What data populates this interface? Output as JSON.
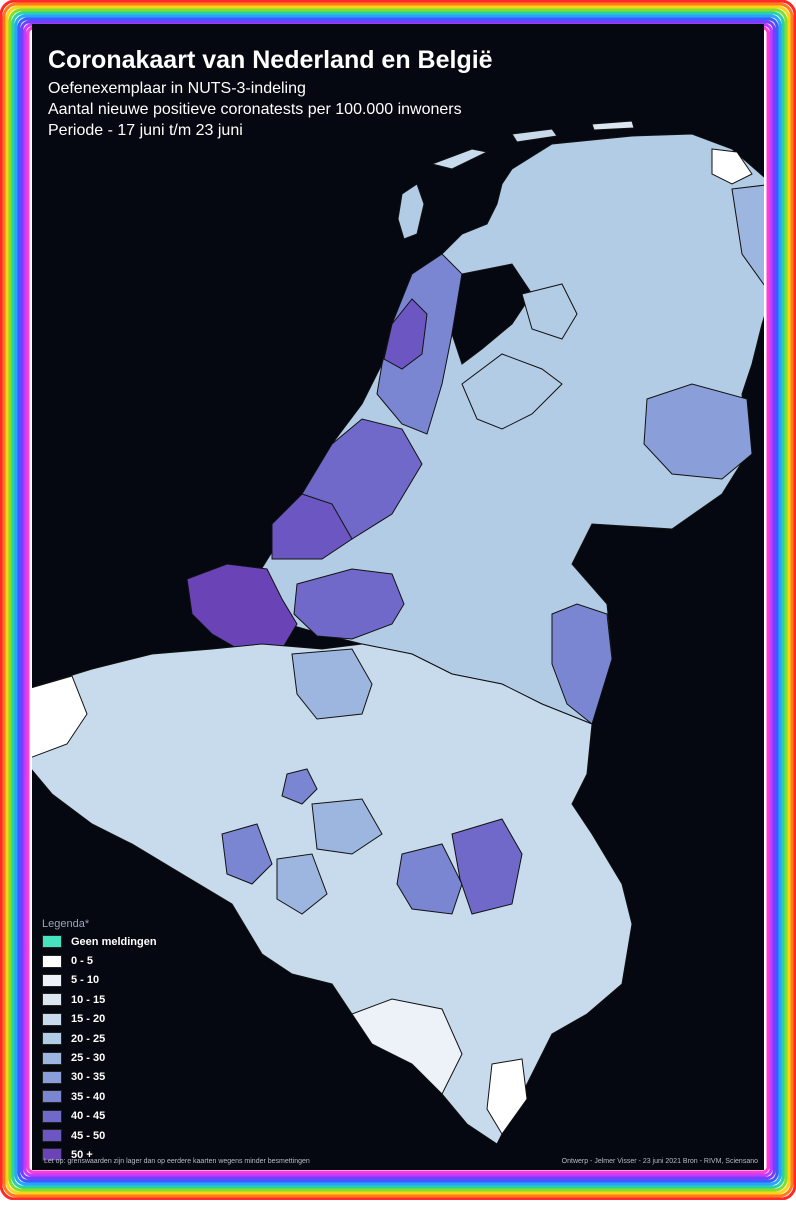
{
  "title": "Coronakaart van Nederland en België",
  "subtitles": [
    "Oefenexemplaar in NUTS-3-indeling",
    "Aantal nieuwe positieve coronatests per 100.000 inwoners",
    "Periode - 17 juni t/m 23 juni"
  ],
  "legend": {
    "title": "Legenda*",
    "items": [
      {
        "label": "Geen meldingen",
        "color": "#46e3c0"
      },
      {
        "label": "0 - 5",
        "color": "#ffffff"
      },
      {
        "label": "5 - 10",
        "color": "#edf2f8"
      },
      {
        "label": "10 - 15",
        "color": "#dbe6f1"
      },
      {
        "label": "15 - 20",
        "color": "#c8dbec"
      },
      {
        "label": "20 - 25",
        "color": "#b3cce6"
      },
      {
        "label": "25 - 30",
        "color": "#9db6e0"
      },
      {
        "label": "30 - 35",
        "color": "#8a9fd9"
      },
      {
        "label": "35 - 40",
        "color": "#7b86d2"
      },
      {
        "label": "40 - 45",
        "color": "#7069ca"
      },
      {
        "label": "45 - 50",
        "color": "#6c57c2"
      },
      {
        "label": "50 +",
        "color": "#6a44b7"
      }
    ]
  },
  "footnote_left": "Let op: grenswaarden zijn lager dan op eerdere kaarten wegens minder besmettingen",
  "footnote_right": "Ontwerp - Jelmer Visser - 23 juni 2021 Bron - RIVM, Sciensano",
  "map": {
    "regions": [
      {
        "name": "oost-groningen",
        "class": "0 - 5"
      },
      {
        "name": "delfzijl",
        "class": "10 - 15"
      },
      {
        "name": "overig-groningen",
        "class": "10 - 15"
      },
      {
        "name": "noord-friesland",
        "class": "15 - 20"
      },
      {
        "name": "zuidwest-friesland",
        "class": "15 - 20"
      },
      {
        "name": "zuidoost-friesland",
        "class": "15 - 20"
      },
      {
        "name": "noord-drenthe",
        "class": "15 - 20"
      },
      {
        "name": "zuidoost-drenthe",
        "class": "10 - 15"
      },
      {
        "name": "zuidwest-drenthe",
        "class": "20 - 25"
      },
      {
        "name": "noord-overijssel",
        "class": "25 - 30"
      },
      {
        "name": "zuidwest-overijssel",
        "class": "20 - 25"
      },
      {
        "name": "twente",
        "class": "30 - 35"
      },
      {
        "name": "flevoland",
        "class": "20 - 25"
      },
      {
        "name": "veluwe",
        "class": "25 - 30"
      },
      {
        "name": "achterhoek",
        "class": "20 - 25"
      },
      {
        "name": "arnhem-nijmegen",
        "class": "25 - 30"
      },
      {
        "name": "zuidwest-gelderland",
        "class": "25 - 30"
      },
      {
        "name": "utrecht",
        "class": "30 - 35"
      },
      {
        "name": "kop-van-noord-holland",
        "class": "20 - 25"
      },
      {
        "name": "alkmaar",
        "class": "45 - 50"
      },
      {
        "name": "ijmond",
        "class": "40 - 45"
      },
      {
        "name": "haarlem",
        "class": "40 - 45"
      },
      {
        "name": "zaanstreek",
        "class": "35 - 40"
      },
      {
        "name": "groot-amsterdam",
        "class": "35 - 40"
      },
      {
        "name": "het-gooi",
        "class": "30 - 35"
      },
      {
        "name": "agglomeratie-leiden",
        "class": "40 - 45"
      },
      {
        "name": "agglomeratie-s-gravenhage",
        "class": "45 - 50"
      },
      {
        "name": "delft-westland",
        "class": "45 - 50"
      },
      {
        "name": "oost-zuid-holland",
        "class": "35 - 40"
      },
      {
        "name": "groot-rijnmond",
        "class": "45 - 50"
      },
      {
        "name": "zuidoost-zuid-holland",
        "class": "35 - 40"
      },
      {
        "name": "zeeuwsch-vlaanderen",
        "class": "45 - 50"
      },
      {
        "name": "overig-zeeland",
        "class": "50 +"
      },
      {
        "name": "west-noord-brabant",
        "class": "40 - 45"
      },
      {
        "name": "midden-noord-brabant",
        "class": "20 - 25"
      },
      {
        "name": "noordoost-noord-brabant",
        "class": "25 - 30"
      },
      {
        "name": "zuidoost-noord-brabant",
        "class": "25 - 30"
      },
      {
        "name": "noord-limburg",
        "class": "35 - 40"
      },
      {
        "name": "midden-limburg",
        "class": "15 - 20"
      },
      {
        "name": "zuid-limburg",
        "class": "15 - 20"
      },
      {
        "name": "antwerpen",
        "class": "25 - 30"
      },
      {
        "name": "turnhout",
        "class": "20 - 25"
      },
      {
        "name": "mechelen",
        "class": "20 - 25"
      },
      {
        "name": "brugge",
        "class": "15 - 20"
      },
      {
        "name": "veurne",
        "class": "0 - 5"
      },
      {
        "name": "oostende",
        "class": "10 - 15"
      },
      {
        "name": "ieper",
        "class": "10 - 15"
      },
      {
        "name": "kortrijk",
        "class": "15 - 20"
      },
      {
        "name": "gent",
        "class": "20 - 25"
      },
      {
        "name": "eeklo",
        "class": "15 - 20"
      },
      {
        "name": "dendermonde",
        "class": "20 - 25"
      },
      {
        "name": "aalst",
        "class": "25 - 30"
      },
      {
        "name": "halle-vilvoorde",
        "class": "15 - 20"
      },
      {
        "name": "brussel",
        "class": "35 - 40"
      },
      {
        "name": "leuven",
        "class": "15 - 20"
      },
      {
        "name": "hasselt",
        "class": "20 - 25"
      },
      {
        "name": "maaseik",
        "class": "10 - 15"
      },
      {
        "name": "tongeren",
        "class": "15 - 20"
      },
      {
        "name": "nijvel",
        "class": "25 - 30"
      },
      {
        "name": "doornik",
        "class": "15 - 20"
      },
      {
        "name": "moeskroen",
        "class": "10 - 15"
      },
      {
        "name": "aat",
        "class": "25 - 30"
      },
      {
        "name": "bergen",
        "class": "35 - 40"
      },
      {
        "name": "zinnik",
        "class": "20 - 25"
      },
      {
        "name": "charleroi",
        "class": "10 - 15"
      },
      {
        "name": "thuin",
        "class": "20 - 25"
      },
      {
        "name": "namen",
        "class": "10 - 15"
      },
      {
        "name": "hoei",
        "class": "35 - 40"
      },
      {
        "name": "borgworm",
        "class": "25 - 30"
      },
      {
        "name": "luik",
        "class": "40 - 45"
      },
      {
        "name": "verviers",
        "class": "20 - 25"
      },
      {
        "name": "oostkantons",
        "class": "15 - 20"
      },
      {
        "name": "dinant",
        "class": "5 - 10"
      },
      {
        "name": "philippeville",
        "class": "10 - 15"
      },
      {
        "name": "marche-en-famenne",
        "class": "10 - 15"
      },
      {
        "name": "bastenaken",
        "class": "10 - 15"
      },
      {
        "name": "neufchateau",
        "class": "5 - 10"
      },
      {
        "name": "virton",
        "class": "15 - 20"
      },
      {
        "name": "aarlen",
        "class": "0 - 5"
      }
    ]
  }
}
